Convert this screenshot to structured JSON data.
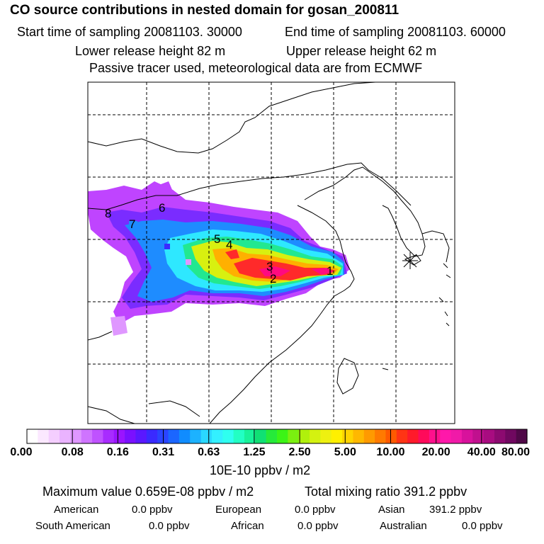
{
  "header": {
    "title": "CO  source contributions in nested domain for gosan_200811",
    "start_time": "Start time of sampling 20081103. 30000",
    "end_time": "End time of sampling 20081103. 60000",
    "lower_release": "Lower release height   82 m",
    "upper_release": "Upper release height   62 m",
    "tracer_note": "Passive tracer used, meteorological data are from ECMWF"
  },
  "chart_data": {
    "type": "heatmap",
    "title": "CO  source contributions in nested domain for gosan_200811",
    "colorbar": {
      "ticks": [
        "0.00",
        "0.08",
        "0.16",
        "0.31",
        "0.63",
        "1.25",
        "2.50",
        "5.00",
        "10.00",
        "20.00",
        "40.00",
        "80.00"
      ],
      "units": "10E-10 ppbv / m2",
      "colors": [
        "#ffffff",
        "#fbe8ff",
        "#f4ceff",
        "#eab3ff",
        "#df97ff",
        "#cf74ff",
        "#bf52ff",
        "#a82cff",
        "#9a14ff",
        "#7a10ff",
        "#5a18ff",
        "#3a2aff",
        "#2a44ff",
        "#1b66ff",
        "#108cff",
        "#1cb2ff",
        "#2ad8ff",
        "#33f0ff",
        "#2ffff0",
        "#22ffc4",
        "#18f29a",
        "#10e074",
        "#26ea3a",
        "#3cf416",
        "#7af010",
        "#b0f00c",
        "#d4f210",
        "#eef010",
        "#fff000",
        "#ffd400",
        "#ffb800",
        "#ff9a00",
        "#ff7a00",
        "#ff5a00",
        "#ff3414",
        "#ff1a2a",
        "#ff0a5a",
        "#ff108c",
        "#ff18aa",
        "#f01aa8",
        "#d8129c",
        "#c0108e",
        "#a80c80",
        "#8c0a70",
        "#700860",
        "#500848"
      ]
    },
    "source_markers": [
      "1",
      "2",
      "3",
      "4",
      "5",
      "6",
      "7",
      "8"
    ],
    "receptor": "gosan"
  },
  "summary": {
    "max_value": "Maximum value  0.659E-08 ppbv / m2",
    "total_mixing": "Total mixing ratio     391.2 ppbv",
    "american_label": "American",
    "american_value": "0.0 ppbv",
    "european_label": "European",
    "european_value": "0.0 ppbv",
    "asian_label": "Asian",
    "asian_value": "391.2 ppbv",
    "south_american_label": "South American",
    "south_american_value": "0.0 ppbv",
    "african_label": "African",
    "african_value": "0.0 ppbv",
    "australian_label": "Australian",
    "australian_value": "0.0 ppbv"
  }
}
